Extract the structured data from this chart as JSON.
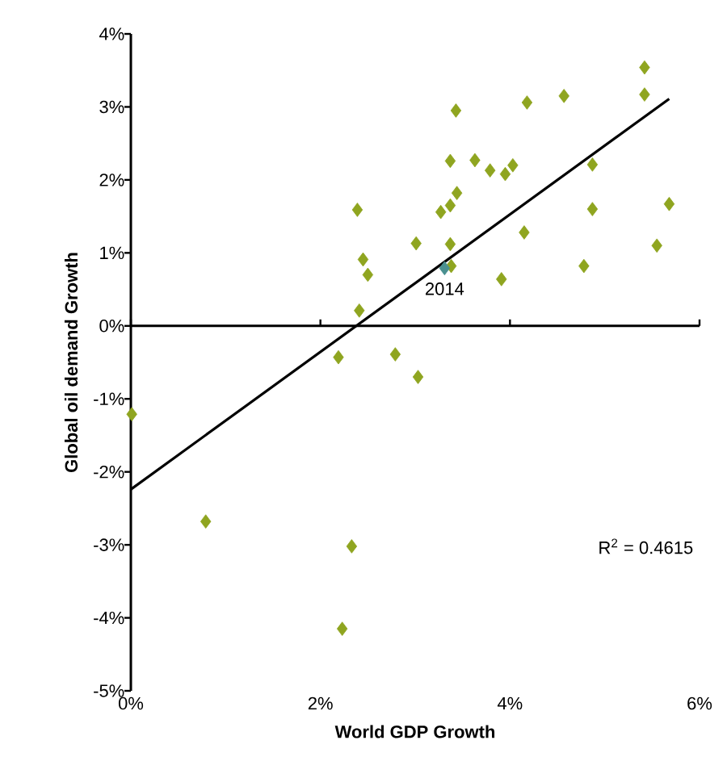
{
  "chart_data": {
    "type": "scatter",
    "xlabel": "World GDP Growth",
    "ylabel": "Global oil demand Growth",
    "marker": "diamond",
    "xlim": [
      0,
      6
    ],
    "ylim": [
      -5,
      4
    ],
    "xticks": [
      {
        "value": 0,
        "label": "0%"
      },
      {
        "value": 2,
        "label": "2%"
      },
      {
        "value": 4,
        "label": "4%"
      },
      {
        "value": 6,
        "label": "6%"
      }
    ],
    "yticks": [
      {
        "value": -5,
        "label": "-5%"
      },
      {
        "value": -4,
        "label": "-4%"
      },
      {
        "value": -3,
        "label": "-3%"
      },
      {
        "value": -2,
        "label": "-2%"
      },
      {
        "value": -1,
        "label": "-1%"
      },
      {
        "value": 0,
        "label": "0%"
      },
      {
        "value": 1,
        "label": "1%"
      },
      {
        "value": 2,
        "label": "2%"
      },
      {
        "value": 3,
        "label": "3%"
      },
      {
        "value": 4,
        "label": "4%"
      }
    ],
    "annotations": [
      {
        "text": "2014",
        "x": 3.31,
        "y": 0.79
      },
      "R$^{2}$ = 0.4615"
    ],
    "series": [
      {
        "color": "#8fa520",
        "x": [
          5.42,
          5.42,
          4.57,
          4.18,
          3.43,
          3.37,
          3.63,
          3.79,
          3.95,
          4.03,
          4.87,
          3.44,
          3.37,
          3.27,
          2.39,
          4.87,
          5.68,
          3.01,
          3.37,
          4.15,
          5.55,
          2.45,
          2.5,
          3.38,
          3.91,
          4.78,
          2.41,
          2.19,
          2.79,
          3.03,
          0.01,
          0.79,
          2.33,
          2.23
        ],
        "values": [
          3.54,
          3.17,
          3.15,
          3.06,
          2.95,
          2.26,
          2.27,
          2.13,
          2.08,
          2.2,
          2.21,
          1.82,
          1.65,
          1.56,
          1.59,
          1.6,
          1.67,
          1.13,
          1.12,
          1.28,
          1.1,
          0.91,
          0.7,
          0.82,
          0.64,
          0.82,
          0.21,
          -0.43,
          -0.39,
          -0.7,
          -1.21,
          -2.68,
          -3.02,
          -4.15
        ]
      },
      {
        "color": "#4a9090",
        "x": [
          3.31
        ],
        "values": [
          0.79
        ]
      },
      {
        "type": "line",
        "color": "#000000",
        "marker": "none",
        "x": [
          0,
          5.68
        ],
        "values": [
          -2.24,
          3.11
        ]
      }
    ]
  }
}
